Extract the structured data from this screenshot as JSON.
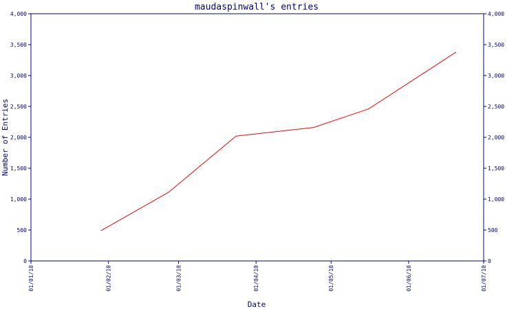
{
  "chart_data": {
    "type": "line",
    "title": "maudaspinwall's entries",
    "xlabel": "Date",
    "ylabel": "Number of Entries",
    "x_ticks": [
      "01/01/10",
      "01/02/10",
      "01/03/10",
      "01/04/10",
      "01/05/10",
      "01/06/10",
      "01/07/10"
    ],
    "x_range": [
      "2010-01-01",
      "2010-07-01"
    ],
    "y_ticks": [
      "0",
      "500",
      "1,000",
      "1,500",
      "2,000",
      "2,500",
      "3,000",
      "3,500",
      "4,000"
    ],
    "ylim": [
      0,
      4000
    ],
    "grid": false,
    "right_axis": true,
    "series": [
      {
        "color": "#ff0000",
        "points": [
          {
            "x": "2010-01-29",
            "y": 490
          },
          {
            "x": "2010-02-25",
            "y": 1110
          },
          {
            "x": "2010-03-24",
            "y": 2020
          },
          {
            "x": "2010-04-24",
            "y": 2160
          },
          {
            "x": "2010-05-16",
            "y": 2460
          },
          {
            "x": "2010-06-20",
            "y": 3380
          }
        ]
      }
    ],
    "colors": {
      "axis": "#000080",
      "text": "#000080",
      "line": "#ff0000"
    }
  }
}
